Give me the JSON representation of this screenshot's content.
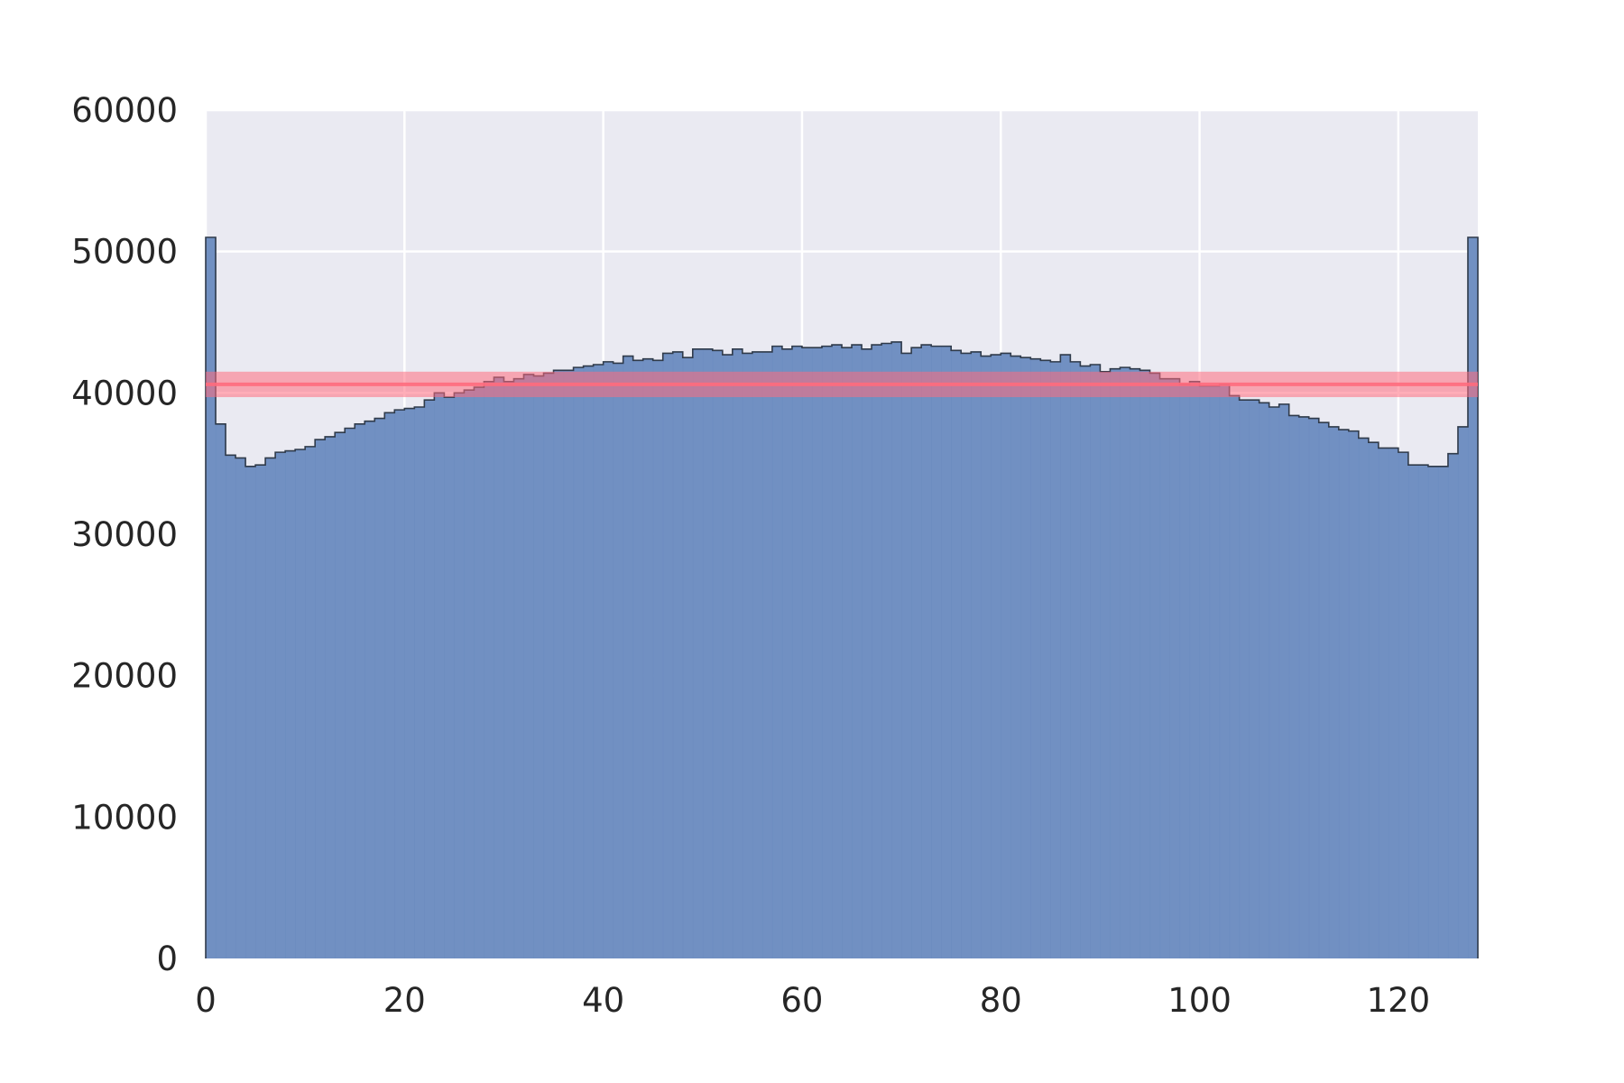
{
  "chart_data": {
    "type": "bar",
    "title": "",
    "xlabel": "",
    "ylabel": "",
    "xlim": [
      0,
      128
    ],
    "ylim": [
      0,
      60000
    ],
    "xticks": [
      0,
      20,
      40,
      60,
      80,
      100,
      120
    ],
    "yticks": [
      0,
      10000,
      20000,
      30000,
      40000,
      50000,
      60000
    ],
    "xtick_labels": [
      "0",
      "20",
      "40",
      "60",
      "80",
      "100",
      "120"
    ],
    "ytick_labels": [
      "0",
      "10000",
      "20000",
      "30000",
      "40000",
      "50000",
      "60000"
    ],
    "grid": true,
    "bin_width": 1,
    "bin_start": 0,
    "values": [
      51000,
      37800,
      35600,
      35400,
      34800,
      34900,
      35400,
      35800,
      35900,
      36000,
      36200,
      36700,
      36900,
      37200,
      37500,
      37800,
      38000,
      38200,
      38600,
      38800,
      38900,
      39000,
      39500,
      40000,
      39700,
      40000,
      40200,
      40400,
      40800,
      41100,
      40800,
      41000,
      41300,
      41200,
      41400,
      41600,
      41600,
      41800,
      41900,
      42000,
      42200,
      42100,
      42600,
      42300,
      42400,
      42300,
      42800,
      42900,
      42500,
      43100,
      43100,
      43000,
      42700,
      43100,
      42800,
      42900,
      42900,
      43300,
      43100,
      43300,
      43200,
      43200,
      43300,
      43400,
      43200,
      43400,
      43100,
      43400,
      43500,
      43600,
      42800,
      43200,
      43400,
      43300,
      43300,
      43000,
      42800,
      42900,
      42600,
      42700,
      42800,
      42600,
      42500,
      42400,
      42300,
      42200,
      42700,
      42200,
      41900,
      42000,
      41500,
      41700,
      41800,
      41700,
      41600,
      41400,
      41000,
      41000,
      40600,
      40800,
      40500,
      40500,
      40600,
      39800,
      39500,
      39500,
      39300,
      39000,
      39200,
      38400,
      38300,
      38200,
      37900,
      37600,
      37400,
      37300,
      36800,
      36500,
      36100,
      36100,
      35800,
      34900,
      34900,
      34800,
      34800,
      35700,
      37600,
      51000
    ],
    "mean_line": {
      "value": 40600,
      "band": 900,
      "color": "#ff6b7d"
    },
    "colors": {
      "bar_fill": "#6b8bbf",
      "bar_edge": "#2f3a4a",
      "plot_bg": "#eaeaf2",
      "grid": "#ffffff",
      "text": "#262626"
    }
  }
}
